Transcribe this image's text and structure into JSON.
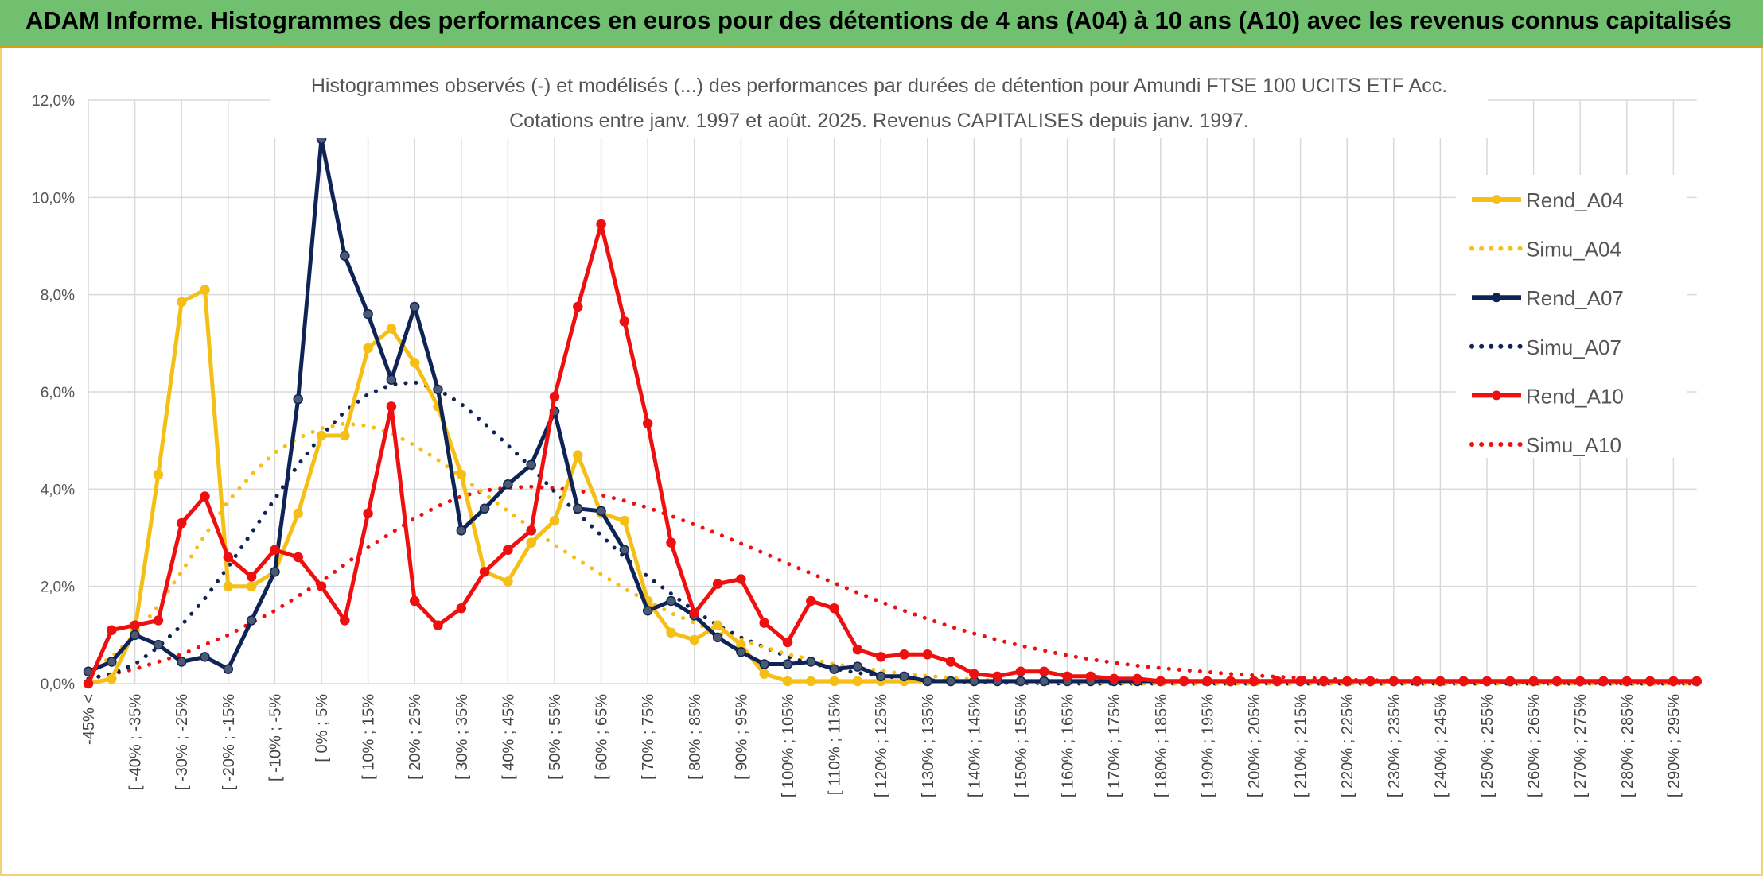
{
  "header": {
    "title": "ADAM Informe. Histogrammes des performances en euros pour des détentions de 4 ans (A04) à 10 ans (A10) avec les revenus connus capitalisés"
  },
  "colors": {
    "banner_bg": "#70c070",
    "A04": "#f5bf16",
    "A07": "#0f2456",
    "A10": "#ee1010",
    "grid": "#d9d9d9"
  },
  "chart_data": {
    "type": "line",
    "title_line1": "Histogrammes observés (-) et modélisés (...) des performances par durées de détention pour Amundi FTSE 100 UCITS ETF Acc.",
    "title_line2": "Cotations entre janv. 1997 et août. 2025. Revenus CAPITALISES depuis janv. 1997.",
    "ylim": [
      0,
      12
    ],
    "y_ticks": [
      "0,0%",
      "2,0%",
      "4,0%",
      "6,0%",
      "8,0%",
      "10,0%",
      "12,0%"
    ],
    "grid": true,
    "legend_position": "right",
    "x_tick_labels": [
      "-45% <",
      "[ -40% ; -35%",
      "[ -30% ; -25%",
      "[ -20% ; -15%",
      "[ -10% ; -5%",
      "[ 0% ; 5%",
      "[ 10% ; 15%",
      "[ 20% ; 25%",
      "[ 30% ; 35%",
      "[ 40% ; 45%",
      "[ 50% ; 55%",
      "[ 60% ; 65%",
      "[ 70% ; 75%",
      "[ 80% ; 85%",
      "[ 90% ; 95%",
      "[ 100% ; 105%",
      "[ 110% ; 115%",
      "[ 120% ; 125%",
      "[ 130% ; 135%",
      "[ 140% ; 145%",
      "[ 150% ; 155%",
      "[ 160% ; 165%",
      "[ 170% ; 175%",
      "[ 180% ; 185%",
      "[ 190% ; 195%",
      "[ 200% ; 205%",
      "[ 210% ; 215%",
      "[ 220% ; 225%",
      "[ 230% ; 235%",
      "[ 240% ; 245%",
      "[ 250% ; 255%",
      "[ 260% ; 265%",
      "[ 270% ; 275%",
      "[ 280% ; 285%",
      "[ 290% ; 295%"
    ],
    "series": [
      {
        "name": "Rend_A04",
        "style": "solid",
        "markers": true,
        "values": [
          0.0,
          0.1,
          1.1,
          4.3,
          7.85,
          8.1,
          2.0,
          2.0,
          2.3,
          3.5,
          5.1,
          5.1,
          6.9,
          7.3,
          6.6,
          5.7,
          4.3,
          2.3,
          2.1,
          2.9,
          3.35,
          4.7,
          3.5,
          3.35,
          1.7,
          1.05,
          0.9,
          1.2,
          0.8,
          0.2,
          0.05,
          0.05,
          0.05,
          0.05,
          0.05,
          0.05,
          0.05,
          0.05,
          0.05,
          0.05,
          0.05,
          0.05,
          0.05,
          0.05,
          0.05,
          0.05,
          0.05,
          0.05,
          0.05,
          0.05,
          0.05,
          0.05,
          0.05,
          0.05,
          0.05,
          0.05,
          0.05,
          0.05,
          0.05,
          0.05,
          0.05,
          0.05,
          0.05,
          0.05,
          0.05,
          0.05,
          0.05,
          0.05,
          0.05,
          0.05
        ]
      },
      {
        "name": "Simu_A04",
        "style": "dotted",
        "markers": false,
        "values": [
          0.25,
          0.55,
          1.0,
          1.6,
          2.3,
          3.05,
          3.75,
          4.3,
          4.75,
          5.05,
          5.25,
          5.35,
          5.3,
          5.15,
          4.9,
          4.6,
          4.25,
          3.9,
          3.55,
          3.2,
          2.85,
          2.55,
          2.25,
          1.95,
          1.7,
          1.45,
          1.25,
          1.05,
          0.9,
          0.75,
          0.6,
          0.5,
          0.4,
          0.33,
          0.27,
          0.2,
          0.16,
          0.12,
          0.09,
          0.06,
          0.04,
          0.03,
          0.02,
          0.01,
          0.01,
          0.0,
          0.0,
          0.0,
          0.0,
          0.0,
          0.0,
          0.0,
          0.0,
          0.0,
          0.0,
          0.0,
          0.0,
          0.0,
          0.0,
          0.0,
          0.0,
          0.0,
          0.0,
          0.0,
          0.0,
          0.0,
          0.0,
          0.0,
          0.0,
          0.0
        ]
      },
      {
        "name": "Rend_A07",
        "style": "solid",
        "markers": true,
        "values": [
          0.25,
          0.45,
          1.0,
          0.8,
          0.45,
          0.55,
          0.3,
          1.3,
          2.3,
          5.85,
          11.2,
          8.8,
          7.6,
          6.25,
          7.75,
          6.05,
          3.15,
          3.6,
          4.1,
          4.5,
          5.6,
          3.6,
          3.55,
          2.75,
          1.5,
          1.7,
          1.4,
          0.95,
          0.65,
          0.4,
          0.4,
          0.45,
          0.3,
          0.35,
          0.15,
          0.15,
          0.05,
          0.05,
          0.05,
          0.05,
          0.05,
          0.05,
          0.05,
          0.05,
          0.05,
          0.05,
          0.05,
          0.05,
          0.05,
          0.05,
          0.05,
          0.05,
          0.05,
          0.05,
          0.05,
          0.05,
          0.05,
          0.05,
          0.05,
          0.05,
          0.05,
          0.05,
          0.05,
          0.05,
          0.05,
          0.05,
          0.05,
          0.05,
          0.05,
          0.05
        ]
      },
      {
        "name": "Simu_A07",
        "style": "dotted",
        "markers": false,
        "values": [
          0.1,
          0.2,
          0.4,
          0.75,
          1.2,
          1.75,
          2.4,
          3.1,
          3.8,
          4.5,
          5.1,
          5.6,
          5.95,
          6.15,
          6.2,
          6.05,
          5.75,
          5.35,
          4.9,
          4.45,
          3.95,
          3.5,
          3.05,
          2.6,
          2.2,
          1.85,
          1.5,
          1.2,
          0.95,
          0.75,
          0.55,
          0.42,
          0.31,
          0.22,
          0.16,
          0.11,
          0.07,
          0.05,
          0.03,
          0.02,
          0.01,
          0.01,
          0.0,
          0.0,
          0.0,
          0.0,
          0.0,
          0.0,
          0.0,
          0.0,
          0.0,
          0.0,
          0.0,
          0.0,
          0.0,
          0.0,
          0.0,
          0.0,
          0.0,
          0.0,
          0.0,
          0.0,
          0.0,
          0.0,
          0.0,
          0.0,
          0.0,
          0.0,
          0.0,
          0.0
        ]
      },
      {
        "name": "Rend_A10",
        "style": "solid",
        "markers": true,
        "values": [
          0.0,
          1.1,
          1.2,
          1.3,
          3.3,
          3.85,
          2.6,
          2.2,
          2.75,
          2.6,
          2.0,
          1.3,
          3.5,
          5.7,
          1.7,
          1.2,
          1.55,
          2.3,
          2.75,
          3.15,
          5.9,
          7.75,
          9.45,
          7.45,
          5.35,
          2.9,
          1.45,
          2.05,
          2.15,
          1.25,
          0.85,
          1.7,
          1.55,
          0.7,
          0.55,
          0.6,
          0.6,
          0.45,
          0.2,
          0.15,
          0.25,
          0.25,
          0.15,
          0.15,
          0.1,
          0.1,
          0.05,
          0.05,
          0.05,
          0.05,
          0.05,
          0.05,
          0.05,
          0.05,
          0.05,
          0.05,
          0.05,
          0.05,
          0.05,
          0.05,
          0.05,
          0.05,
          0.05,
          0.05,
          0.05,
          0.05,
          0.05,
          0.05,
          0.05,
          0.05
        ]
      },
      {
        "name": "Simu_A10",
        "style": "dotted",
        "markers": false,
        "values": [
          0.1,
          0.2,
          0.3,
          0.45,
          0.6,
          0.8,
          1.0,
          1.25,
          1.5,
          1.8,
          2.1,
          2.45,
          2.8,
          3.1,
          3.4,
          3.65,
          3.85,
          3.97,
          4.03,
          4.05,
          4.02,
          3.97,
          3.88,
          3.76,
          3.62,
          3.45,
          3.27,
          3.08,
          2.88,
          2.68,
          2.47,
          2.27,
          2.07,
          1.87,
          1.68,
          1.5,
          1.33,
          1.17,
          1.03,
          0.9,
          0.78,
          0.68,
          0.58,
          0.5,
          0.43,
          0.37,
          0.32,
          0.28,
          0.24,
          0.2,
          0.17,
          0.14,
          0.12,
          0.1,
          0.08,
          0.07,
          0.06,
          0.05,
          0.04,
          0.03,
          0.03,
          0.02,
          0.02,
          0.01,
          0.01,
          0.01,
          0.01,
          0.01,
          0.01,
          0.0
        ]
      }
    ]
  }
}
